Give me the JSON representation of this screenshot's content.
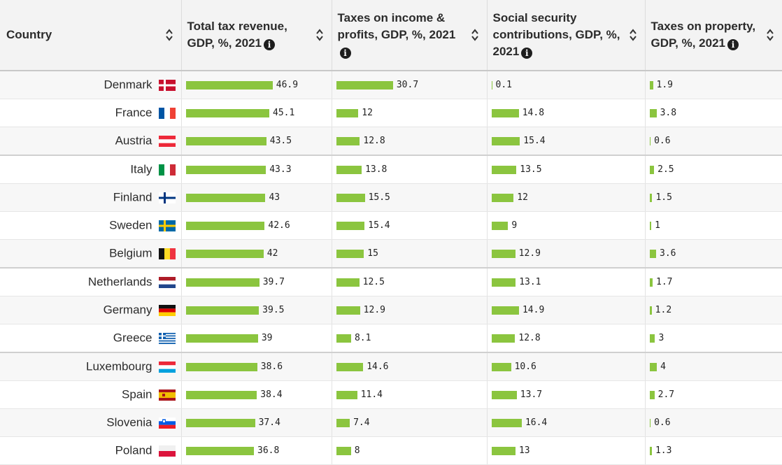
{
  "table": {
    "headers": [
      {
        "label": "Country",
        "info": false
      },
      {
        "label": "Total tax revenue, GDP, %, 2021",
        "info": true
      },
      {
        "label": "Taxes on income & profits, GDP, %, 2021",
        "info": true
      },
      {
        "label": "Social security contributions, GDP, %, 2021",
        "info": true
      },
      {
        "label": "Taxes on property, GDP, %, 2021",
        "info": true
      }
    ]
  },
  "chart_data": {
    "type": "table",
    "bar_color": "#8bc53f",
    "columns": [
      "Total tax revenue, GDP, %, 2021",
      "Taxes on income & profits, GDP, %, 2021",
      "Social security contributions, GDP, %, 2021",
      "Taxes on property, GDP, %, 2021"
    ],
    "rows": [
      {
        "country": "Denmark",
        "flag": "denmark-flag",
        "values": [
          46.9,
          30.7,
          0.1,
          1.9
        ]
      },
      {
        "country": "France",
        "flag": "france-flag",
        "values": [
          45.1,
          12,
          14.8,
          3.8
        ]
      },
      {
        "country": "Austria",
        "flag": "austria-flag",
        "values": [
          43.5,
          12.8,
          15.4,
          0.6
        ]
      },
      {
        "country": "Italy",
        "flag": "italy-flag",
        "values": [
          43.3,
          13.8,
          13.5,
          2.5
        ]
      },
      {
        "country": "Finland",
        "flag": "finland-flag",
        "values": [
          43,
          15.5,
          12,
          1.5
        ]
      },
      {
        "country": "Sweden",
        "flag": "sweden-flag",
        "values": [
          42.6,
          15.4,
          9,
          1
        ]
      },
      {
        "country": "Belgium",
        "flag": "belgium-flag",
        "values": [
          42,
          15,
          12.9,
          3.6
        ]
      },
      {
        "country": "Netherlands",
        "flag": "netherlands-flag",
        "values": [
          39.7,
          12.5,
          13.1,
          1.7
        ]
      },
      {
        "country": "Germany",
        "flag": "germany-flag",
        "values": [
          39.5,
          12.9,
          14.9,
          1.2
        ]
      },
      {
        "country": "Greece",
        "flag": "greece-flag",
        "values": [
          39,
          8.1,
          12.8,
          3
        ]
      },
      {
        "country": "Luxembourg",
        "flag": "luxembourg-flag",
        "values": [
          38.6,
          14.6,
          10.6,
          4
        ]
      },
      {
        "country": "Spain",
        "flag": "spain-flag",
        "values": [
          38.4,
          11.4,
          13.7,
          2.7
        ]
      },
      {
        "country": "Slovenia",
        "flag": "slovenia-flag",
        "values": [
          37.4,
          7.4,
          16.4,
          0.6
        ]
      },
      {
        "country": "Poland",
        "flag": "poland-flag",
        "values": [
          36.8,
          8,
          13,
          1.3
        ]
      }
    ]
  }
}
